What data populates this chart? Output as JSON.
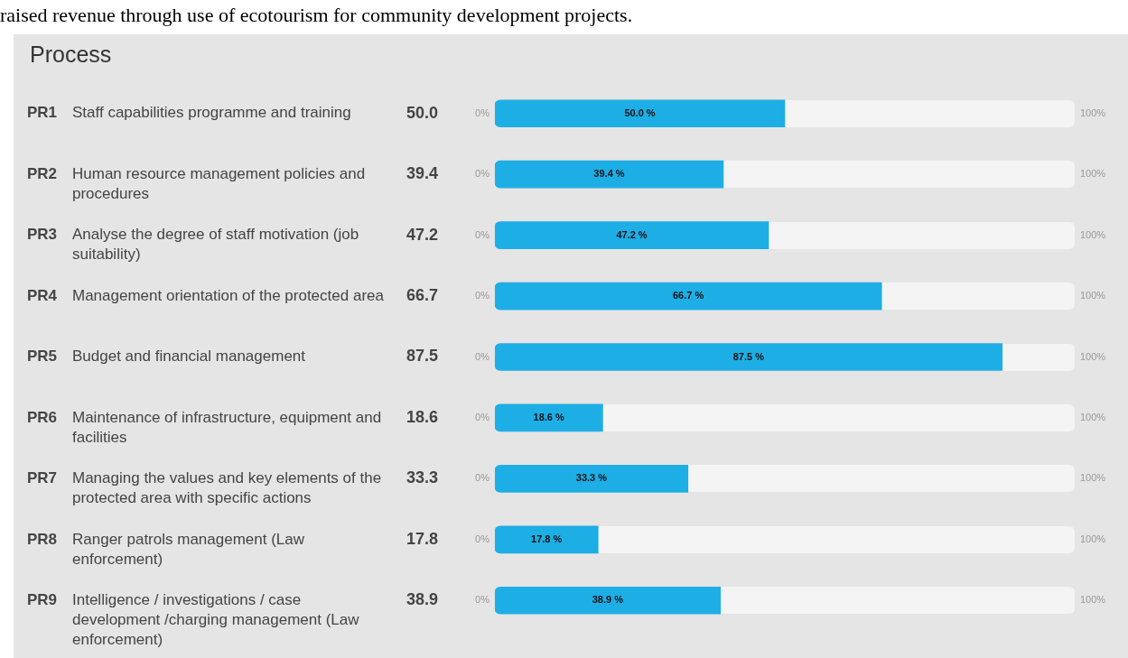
{
  "chart_data": {
    "type": "bar",
    "orientation": "horizontal",
    "title": "Process",
    "annotations": [
      "raised revenue through use of ecotourism for community development projects.",
      "0%",
      "100%",
      "50.0",
      "39.4",
      "47.2",
      "66.7",
      "87.5",
      "18.6",
      "33.3",
      "17.8",
      "38.9"
    ],
    "categories": [
      "PR1 Staff capabilities programme and training",
      "PR2 Human resource management policies and procedures",
      "PR3 Analyse the degree of staff motivation (job suitability)",
      "PR4 Management orientation of the protected area",
      "PR5 Budget and financial management",
      "PR6 Maintenance of infrastructure, equipment and facilities",
      "PR7 Managing the values and key elements of the protected area with specific actions",
      "PR8 Ranger patrols management (Law enforcement)",
      "PR9 Intelligence / investigations / case development /charging management (Law enforcement)"
    ],
    "values": [
      50.0,
      39.4,
      47.2,
      66.7,
      87.5,
      18.6,
      33.3,
      17.8,
      38.9
    ],
    "value_labels": [
      "50.0 %",
      "39.4 %",
      "47.2 %",
      "66.7 %",
      "87.5 %",
      "18.6 %",
      "33.3 %",
      "17.8 %",
      "38.9 %"
    ],
    "color": "#1eaee6",
    "xlim": [
      0,
      100
    ]
  }
}
